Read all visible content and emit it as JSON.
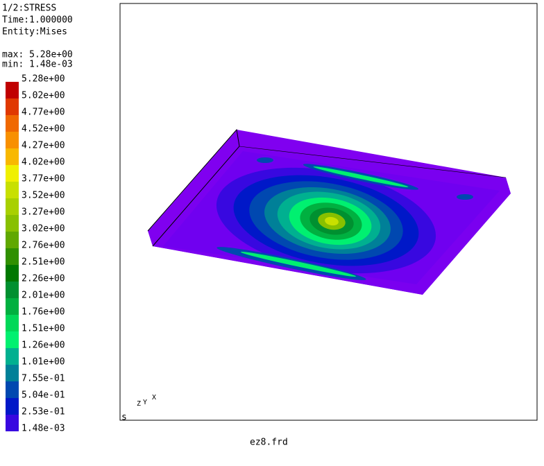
{
  "header": {
    "lines": [
      "1/2:STRESS",
      "Time:1.000000",
      "Entity:Mises"
    ],
    "max": "max: 5.28e+00",
    "min": "min: 1.48e-03"
  },
  "legend": {
    "labels": [
      "5.28e+00",
      "5.02e+00",
      "4.77e+00",
      "4.52e+00",
      "4.27e+00",
      "4.02e+00",
      "3.77e+00",
      "3.52e+00",
      "3.27e+00",
      "3.02e+00",
      "2.76e+00",
      "2.51e+00",
      "2.26e+00",
      "2.01e+00",
      "1.76e+00",
      "1.51e+00",
      "1.26e+00",
      "1.01e+00",
      "7.55e-01",
      "5.04e-01",
      "2.53e-01",
      "1.48e-03"
    ],
    "colors": [
      "#c00000",
      "#e03800",
      "#f06800",
      "#f89000",
      "#f8b800",
      "#f0f000",
      "#c8e000",
      "#a8d000",
      "#88c000",
      "#60a800",
      "#309000",
      "#007800",
      "#009030",
      "#00b040",
      "#00d858",
      "#00f070",
      "#00b090",
      "#008098",
      "#0048b0",
      "#0018c8",
      "#3808e0",
      "#8000f0"
    ]
  },
  "viewport": {
    "file": "ez8.frd",
    "marker": "s",
    "axes": [
      "Z",
      "Y",
      "X"
    ]
  }
}
